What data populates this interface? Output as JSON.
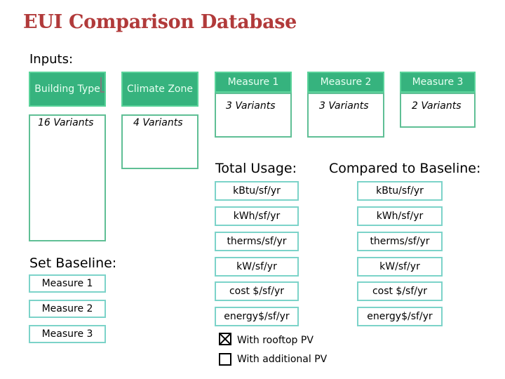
{
  "title": "EUI Comparison Database",
  "inputs_label": "Inputs:",
  "building_type": {
    "label": "Building Type",
    "variants": "16 Variants"
  },
  "climate_zone": {
    "label": "Climate Zone",
    "variants": "4 Variants"
  },
  "measures": [
    {
      "label": "Measure 1",
      "variants": "3 Variants"
    },
    {
      "label": "Measure 2",
      "variants": "3 Variants"
    },
    {
      "label": "Measure 3",
      "variants": "2 Variants"
    }
  ],
  "total_usage_label": "Total Usage:",
  "compared_label": "Compared to Baseline:",
  "units": [
    "kBtu/sf/yr",
    "kWh/sf/yr",
    "therms/sf/yr",
    "kW/sf/yr",
    "cost $/sf/yr",
    "energy$/sf/yr"
  ],
  "set_baseline_label": "Set Baseline:",
  "baseline_options": [
    "Measure 1",
    "Measure 2",
    "Measure 3"
  ],
  "pv_options": [
    {
      "label": "With rooftop PV",
      "checked": true
    },
    {
      "label": "With additional PV",
      "checked": false
    }
  ],
  "colors": {
    "title": "#b13a3a",
    "header_green": "#36b37e",
    "teal_border": "#7cd3c9"
  }
}
